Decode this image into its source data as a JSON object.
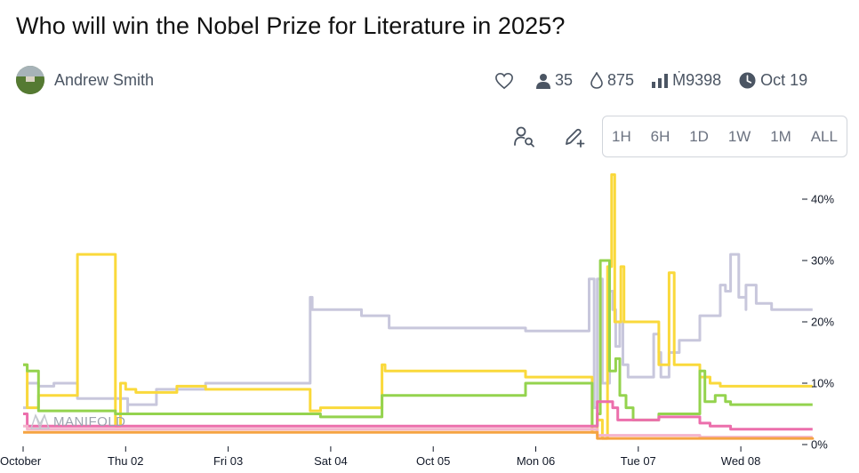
{
  "title": "Who will win the Nobel Prize for Literature in 2025?",
  "author": {
    "name": "Andrew Smith"
  },
  "stats": {
    "traders": "35",
    "likes_icon": "heart-icon",
    "liquidity": "875",
    "volume": "Ṁ9398",
    "close_date": "Oct 19"
  },
  "time_ranges": [
    "1H",
    "6H",
    "1D",
    "1W",
    "1M",
    "ALL"
  ],
  "watermark": "MANIFOLD",
  "chart_data": {
    "type": "line",
    "x_ticks": [
      "October",
      "Thu 02",
      "Fri 03",
      "Sat 04",
      "Oct 05",
      "Mon 06",
      "Tue 07",
      "Wed 08"
    ],
    "y_ticks": [
      "0%",
      "10%",
      "20%",
      "30%",
      "40%"
    ],
    "ylim": [
      0,
      45
    ],
    "xlim": [
      0,
      7.8
    ],
    "grid": false,
    "series": [
      {
        "color": "#c8c7dc",
        "points": [
          [
            0,
            6
          ],
          [
            0.04,
            10
          ],
          [
            0.15,
            9.5
          ],
          [
            0.3,
            10
          ],
          [
            0.53,
            10
          ],
          [
            0.53,
            7.5
          ],
          [
            1.02,
            7.5
          ],
          [
            1.02,
            5
          ],
          [
            1.02,
            6.5
          ],
          [
            1.3,
            6.5
          ],
          [
            1.3,
            9
          ],
          [
            1.78,
            9
          ],
          [
            1.78,
            10
          ],
          [
            2.8,
            10
          ],
          [
            2.8,
            24
          ],
          [
            2.82,
            22
          ],
          [
            3.3,
            22
          ],
          [
            3.3,
            21
          ],
          [
            3.57,
            21
          ],
          [
            3.57,
            19
          ],
          [
            4.9,
            19
          ],
          [
            4.9,
            18.5
          ],
          [
            5.52,
            18.5
          ],
          [
            5.52,
            27
          ],
          [
            5.57,
            6
          ],
          [
            5.6,
            27
          ],
          [
            5.65,
            10
          ],
          [
            5.72,
            25
          ],
          [
            5.75,
            22
          ],
          [
            5.78,
            16
          ],
          [
            5.82,
            20
          ],
          [
            5.85,
            13
          ],
          [
            5.9,
            11
          ],
          [
            6.1,
            11
          ],
          [
            6.15,
            18
          ],
          [
            6.2,
            15
          ],
          [
            6.22,
            11
          ],
          [
            6.3,
            11
          ],
          [
            6.3,
            15
          ],
          [
            6.4,
            17
          ],
          [
            6.6,
            17
          ],
          [
            6.6,
            21
          ],
          [
            6.8,
            21
          ],
          [
            6.8,
            26
          ],
          [
            6.85,
            25
          ],
          [
            6.9,
            31
          ],
          [
            6.95,
            31
          ],
          [
            6.98,
            24
          ],
          [
            7.05,
            22
          ],
          [
            7.05,
            26
          ],
          [
            7.15,
            23
          ],
          [
            7.3,
            23
          ],
          [
            7.3,
            22
          ],
          [
            7.7,
            22
          ]
        ]
      },
      {
        "color": "#fad93b",
        "points": [
          [
            0,
            13
          ],
          [
            0.04,
            6
          ],
          [
            0.15,
            6
          ],
          [
            0.15,
            8
          ],
          [
            0.3,
            8
          ],
          [
            0.53,
            8
          ],
          [
            0.53,
            31
          ],
          [
            0.9,
            31
          ],
          [
            0.9,
            3
          ],
          [
            0.95,
            10
          ],
          [
            1.0,
            9
          ],
          [
            1.02,
            9
          ],
          [
            1.1,
            9
          ],
          [
            1.1,
            8.5
          ],
          [
            1.3,
            8.5
          ],
          [
            1.5,
            8.5
          ],
          [
            1.5,
            9.5
          ],
          [
            1.78,
            9.5
          ],
          [
            1.78,
            9
          ],
          [
            2.8,
            9
          ],
          [
            2.8,
            5.5
          ],
          [
            2.9,
            5.5
          ],
          [
            2.9,
            6
          ],
          [
            3.5,
            6
          ],
          [
            3.5,
            13
          ],
          [
            3.53,
            12
          ],
          [
            4.9,
            12
          ],
          [
            4.9,
            11
          ],
          [
            5.52,
            11
          ],
          [
            5.55,
            2
          ],
          [
            5.6,
            4
          ],
          [
            5.65,
            1
          ],
          [
            5.7,
            29
          ],
          [
            5.74,
            44
          ],
          [
            5.77,
            20
          ],
          [
            5.83,
            29
          ],
          [
            5.86,
            20
          ],
          [
            6.2,
            20
          ],
          [
            6.2,
            13
          ],
          [
            6.3,
            13
          ],
          [
            6.3,
            28
          ],
          [
            6.35,
            13
          ],
          [
            6.6,
            13
          ],
          [
            6.6,
            11
          ],
          [
            6.7,
            11
          ],
          [
            6.7,
            10
          ],
          [
            6.8,
            10
          ],
          [
            6.8,
            9.5
          ],
          [
            6.9,
            9.5
          ],
          [
            7.7,
            9.5
          ]
        ]
      },
      {
        "color": "#94d34e",
        "points": [
          [
            0,
            13
          ],
          [
            0.04,
            12
          ],
          [
            0.15,
            12
          ],
          [
            0.15,
            5.5
          ],
          [
            0.53,
            5.5
          ],
          [
            0.9,
            5.5
          ],
          [
            0.9,
            5
          ],
          [
            1.02,
            5
          ],
          [
            1.5,
            5
          ],
          [
            2.8,
            5
          ],
          [
            2.9,
            4.5
          ],
          [
            3.5,
            4.5
          ],
          [
            3.5,
            8
          ],
          [
            4.9,
            8
          ],
          [
            4.9,
            10
          ],
          [
            5.52,
            10
          ],
          [
            5.55,
            3
          ],
          [
            5.6,
            5
          ],
          [
            5.63,
            30
          ],
          [
            5.68,
            30
          ],
          [
            5.72,
            12
          ],
          [
            5.78,
            14
          ],
          [
            5.82,
            8
          ],
          [
            5.88,
            6
          ],
          [
            5.95,
            4
          ],
          [
            6.2,
            4
          ],
          [
            6.2,
            5
          ],
          [
            6.6,
            5
          ],
          [
            6.6,
            12
          ],
          [
            6.65,
            7
          ],
          [
            6.75,
            8
          ],
          [
            6.85,
            7
          ],
          [
            6.9,
            6.5
          ],
          [
            7.7,
            6.5
          ]
        ]
      },
      {
        "color": "#ec6fac",
        "points": [
          [
            0,
            5
          ],
          [
            0.04,
            3
          ],
          [
            1.02,
            3
          ],
          [
            2.8,
            3
          ],
          [
            3.5,
            3
          ],
          [
            5.52,
            3
          ],
          [
            5.6,
            7
          ],
          [
            5.75,
            6
          ],
          [
            5.8,
            4
          ],
          [
            6.2,
            4
          ],
          [
            6.2,
            4.5
          ],
          [
            6.6,
            4.5
          ],
          [
            6.6,
            3.5
          ],
          [
            6.7,
            3
          ],
          [
            6.9,
            2.5
          ],
          [
            7.2,
            2.5
          ],
          [
            7.7,
            2.5
          ]
        ]
      },
      {
        "color": "#f4b4cc",
        "points": [
          [
            0,
            3
          ],
          [
            0.04,
            2.5
          ],
          [
            1.02,
            2.5
          ],
          [
            2.8,
            2.5
          ],
          [
            3.5,
            2.5
          ],
          [
            5.52,
            2.5
          ],
          [
            5.6,
            1.5
          ],
          [
            6.2,
            1.5
          ],
          [
            6.6,
            1.2
          ],
          [
            7.7,
            1.2
          ]
        ]
      },
      {
        "color": "#f5a341",
        "points": [
          [
            0,
            2
          ],
          [
            0.04,
            2
          ],
          [
            1.02,
            2
          ],
          [
            3.5,
            2
          ],
          [
            5.52,
            2
          ],
          [
            5.6,
            1
          ],
          [
            6.2,
            1
          ],
          [
            7.7,
            0.8
          ]
        ]
      }
    ]
  }
}
